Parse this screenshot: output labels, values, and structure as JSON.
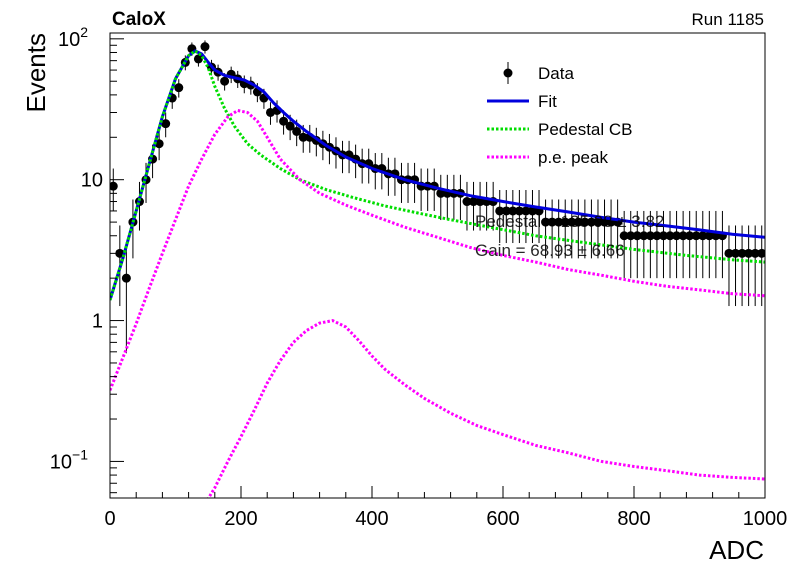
{
  "header": {
    "left": "CaloX",
    "right": "Run 1185"
  },
  "legend": {
    "entries": [
      {
        "label": "Data",
        "style": "markers",
        "color": "#000000"
      },
      {
        "label": "Fit",
        "style": "solid",
        "color": "#0000dd"
      },
      {
        "label": "Pedestal CB",
        "style": "dotted",
        "color": "#00dd00"
      },
      {
        "label": "p.e. peak",
        "style": "dotted",
        "color": "#ff00ff"
      }
    ]
  },
  "fit_text": {
    "line1": "Pedestal = 135.98 ± 3.82",
    "line2": "Gain = 68.93 ± 6.66"
  },
  "chart_data": {
    "type": "scatter",
    "title": "",
    "xlabel": "ADC",
    "ylabel": "Events",
    "xlim": [
      0,
      1000
    ],
    "ylim": [
      0.055,
      110
    ],
    "yscale": "log",
    "grid": false,
    "legend_position": "top-right",
    "x_ticks": [
      0,
      200,
      400,
      600,
      800,
      1000
    ],
    "y_ticks": [
      {
        "value": 0.1,
        "base": "10",
        "exp": "−1"
      },
      {
        "value": 1,
        "base": "1",
        "exp": ""
      },
      {
        "value": 10,
        "base": "10",
        "exp": ""
      },
      {
        "value": 100,
        "base": "10",
        "exp": "2"
      }
    ],
    "series": [
      {
        "name": "Data",
        "kind": "points",
        "color": "#000000",
        "x": [
          5,
          15,
          25,
          35,
          45,
          55,
          65,
          75,
          85,
          95,
          105,
          115,
          125,
          135,
          145,
          155,
          165,
          175,
          185,
          195,
          205,
          215,
          225,
          235,
          245,
          255,
          265,
          275,
          285,
          295,
          305,
          315,
          325,
          335,
          345,
          355,
          365,
          375,
          385,
          395,
          405,
          415,
          425,
          435,
          445,
          455,
          465,
          475,
          485,
          495,
          505,
          515,
          525,
          535,
          545,
          555,
          565,
          575,
          585,
          595,
          605,
          615,
          625,
          635,
          645,
          655,
          665,
          675,
          685,
          695,
          705,
          715,
          725,
          735,
          745,
          755,
          765,
          775,
          785,
          795,
          805,
          815,
          825,
          835,
          845,
          855,
          865,
          875,
          885,
          895,
          905,
          915,
          925,
          935,
          945,
          955,
          965,
          975,
          985,
          995
        ],
        "y": [
          9,
          3,
          2,
          5,
          7,
          10,
          14,
          18,
          25,
          38,
          45,
          68,
          85,
          72,
          88,
          63,
          58,
          50,
          56,
          52,
          48,
          47,
          42,
          38,
          30,
          31,
          26,
          24,
          22,
          20,
          20,
          19,
          18,
          17,
          16,
          15,
          15,
          14,
          13,
          13,
          12,
          12,
          11,
          11,
          10,
          10,
          10,
          9,
          9,
          9,
          8,
          8,
          8,
          8,
          7,
          7,
          7,
          7,
          7,
          6,
          6,
          6,
          6,
          6,
          6,
          6,
          5,
          5,
          5,
          5,
          5,
          5,
          5,
          5,
          5,
          5,
          5,
          5,
          4,
          4,
          4,
          4,
          4,
          4,
          4,
          4,
          4,
          4,
          4,
          4,
          4,
          4,
          4,
          4,
          3,
          3,
          3,
          3,
          3,
          3
        ]
      },
      {
        "name": "Fit",
        "kind": "line",
        "color": "#0000dd",
        "x": [
          0,
          20,
          40,
          60,
          80,
          100,
          120,
          130,
          140,
          150,
          160,
          175,
          190,
          205,
          220,
          235,
          250,
          265,
          280,
          300,
          330,
          360,
          400,
          450,
          500,
          550,
          600,
          650,
          700,
          750,
          800,
          850,
          900,
          950,
          1000
        ],
        "y": [
          1.4,
          2.8,
          6,
          13,
          28,
          52,
          76,
          82,
          78,
          68,
          60,
          55,
          53,
          51,
          47,
          42,
          35,
          30,
          26,
          22,
          17.5,
          14.5,
          12,
          10,
          8.7,
          7.7,
          7,
          6.4,
          5.9,
          5.4,
          5,
          4.7,
          4.4,
          4.1,
          3.9
        ]
      },
      {
        "name": "Pedestal CB",
        "kind": "line",
        "color": "#00dd00",
        "x": [
          0,
          20,
          40,
          60,
          80,
          100,
          120,
          130,
          140,
          150,
          160,
          175,
          190,
          210,
          230,
          260,
          290,
          330,
          370,
          420,
          470,
          520,
          580,
          650,
          720,
          800,
          880,
          950,
          1000
        ],
        "y": [
          1.4,
          2.8,
          6,
          13,
          28,
          52,
          76,
          82,
          76,
          62,
          46,
          32,
          24,
          18,
          15,
          12,
          10,
          8.5,
          7.5,
          6.5,
          5.8,
          5.2,
          4.6,
          4,
          3.6,
          3.2,
          2.9,
          2.7,
          2.6
        ]
      },
      {
        "name": "p.e. peak",
        "kind": "line",
        "color": "#ff00ff",
        "x": [
          0,
          20,
          40,
          60,
          80,
          100,
          120,
          140,
          160,
          180,
          195,
          210,
          225,
          240,
          260,
          290,
          320,
          360,
          400,
          450,
          500,
          550,
          600,
          650,
          700,
          750,
          800,
          850,
          900,
          950,
          1000
        ],
        "y": [
          0.32,
          0.55,
          0.95,
          1.7,
          3,
          5.2,
          9,
          14,
          21,
          28,
          31,
          30,
          26,
          20,
          14,
          10,
          8,
          6.6,
          5.6,
          4.6,
          3.9,
          3.3,
          2.9,
          2.6,
          2.3,
          2.1,
          1.9,
          1.75,
          1.65,
          1.55,
          1.5
        ]
      },
      {
        "name": "p.e. peak",
        "kind": "line",
        "color": "#ff00ff",
        "x": [
          145,
          160,
          180,
          200,
          220,
          240,
          260,
          280,
          300,
          320,
          340,
          360,
          380,
          400,
          420,
          450,
          480,
          520,
          560,
          600,
          650,
          700,
          750,
          800,
          850,
          900,
          950,
          1000
        ],
        "y": [
          0.05,
          0.065,
          0.1,
          0.15,
          0.23,
          0.36,
          0.52,
          0.7,
          0.85,
          0.96,
          1.0,
          0.9,
          0.72,
          0.56,
          0.45,
          0.35,
          0.28,
          0.22,
          0.18,
          0.155,
          0.13,
          0.115,
          0.1,
          0.092,
          0.086,
          0.08,
          0.077,
          0.075
        ]
      }
    ]
  }
}
